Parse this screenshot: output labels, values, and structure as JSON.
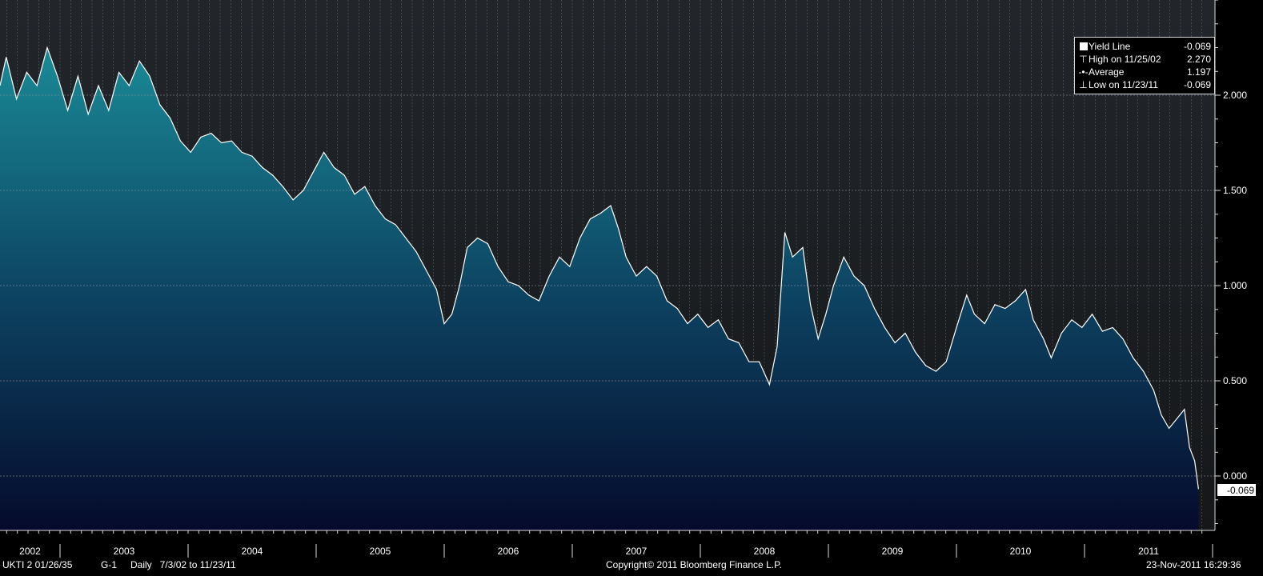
{
  "legend": {
    "series_label": "Yield Line",
    "series_value": "-0.069",
    "high_label": "High on 11/25/02",
    "high_value": "2.270",
    "avg_label": "Average",
    "avg_value": "1.197",
    "low_label": "Low on 11/23/11",
    "low_value": "-0.069"
  },
  "footer": {
    "security": "UKTI 2 01/26/35",
    "graph_id": "G-1",
    "range": "Daily   7/3/02 to 11/23/11",
    "copyright": "Copyright© 2011 Bloomberg Finance L.P.",
    "timestamp": "23-Nov-2011 16:29:36"
  },
  "colors": {
    "background": "#000000",
    "plot_top": "#22262b",
    "plot_bottom": "#151719",
    "area_top": "#1a8a96",
    "area_mid": "#0d4563",
    "area_bottom": "#050a2c",
    "line": "#ffffff",
    "grid": "#8a8f94"
  },
  "chart_data": {
    "type": "area",
    "x_axis_labels": [
      "2002",
      "2003",
      "2004",
      "2005",
      "2006",
      "2007",
      "2008",
      "2009",
      "2010",
      "2011"
    ],
    "y_ticks": [
      "2.000",
      "1.500",
      "1.000",
      "0.500",
      "0.000"
    ],
    "ylim": [
      -0.28,
      2.5
    ],
    "last_value_label": "-0.069",
    "grid": true,
    "legend_position": "top-right",
    "series": [
      {
        "name": "Yield Line",
        "points": [
          [
            2002.5,
            2.05
          ],
          [
            2002.58,
            2.2
          ],
          [
            2002.66,
            1.98
          ],
          [
            2002.74,
            2.12
          ],
          [
            2002.82,
            2.05
          ],
          [
            2002.9,
            2.25
          ],
          [
            2002.98,
            2.1
          ],
          [
            2003.06,
            1.92
          ],
          [
            2003.14,
            2.1
          ],
          [
            2003.22,
            1.9
          ],
          [
            2003.3,
            2.05
          ],
          [
            2003.38,
            1.92
          ],
          [
            2003.46,
            2.12
          ],
          [
            2003.54,
            2.05
          ],
          [
            2003.62,
            2.18
          ],
          [
            2003.7,
            2.1
          ],
          [
            2003.78,
            1.95
          ],
          [
            2003.86,
            1.88
          ],
          [
            2003.94,
            1.76
          ],
          [
            2004.02,
            1.7
          ],
          [
            2004.1,
            1.78
          ],
          [
            2004.18,
            1.8
          ],
          [
            2004.26,
            1.75
          ],
          [
            2004.34,
            1.76
          ],
          [
            2004.42,
            1.7
          ],
          [
            2004.5,
            1.68
          ],
          [
            2004.58,
            1.62
          ],
          [
            2004.66,
            1.58
          ],
          [
            2004.74,
            1.52
          ],
          [
            2004.82,
            1.45
          ],
          [
            2004.9,
            1.5
          ],
          [
            2004.98,
            1.6
          ],
          [
            2005.06,
            1.7
          ],
          [
            2005.14,
            1.62
          ],
          [
            2005.22,
            1.58
          ],
          [
            2005.3,
            1.48
          ],
          [
            2005.38,
            1.52
          ],
          [
            2005.46,
            1.42
          ],
          [
            2005.54,
            1.35
          ],
          [
            2005.62,
            1.32
          ],
          [
            2005.7,
            1.25
          ],
          [
            2005.78,
            1.18
          ],
          [
            2005.86,
            1.08
          ],
          [
            2005.94,
            0.98
          ],
          [
            2006.0,
            0.8
          ],
          [
            2006.06,
            0.85
          ],
          [
            2006.12,
            1.0
          ],
          [
            2006.18,
            1.2
          ],
          [
            2006.26,
            1.25
          ],
          [
            2006.34,
            1.22
          ],
          [
            2006.42,
            1.1
          ],
          [
            2006.5,
            1.02
          ],
          [
            2006.58,
            1.0
          ],
          [
            2006.66,
            0.95
          ],
          [
            2006.74,
            0.92
          ],
          [
            2006.82,
            1.05
          ],
          [
            2006.9,
            1.15
          ],
          [
            2006.98,
            1.1
          ],
          [
            2007.06,
            1.25
          ],
          [
            2007.14,
            1.35
          ],
          [
            2007.22,
            1.38
          ],
          [
            2007.3,
            1.42
          ],
          [
            2007.36,
            1.3
          ],
          [
            2007.42,
            1.15
          ],
          [
            2007.5,
            1.05
          ],
          [
            2007.58,
            1.1
          ],
          [
            2007.66,
            1.05
          ],
          [
            2007.74,
            0.92
          ],
          [
            2007.82,
            0.88
          ],
          [
            2007.9,
            0.8
          ],
          [
            2007.98,
            0.85
          ],
          [
            2008.06,
            0.78
          ],
          [
            2008.14,
            0.82
          ],
          [
            2008.22,
            0.72
          ],
          [
            2008.3,
            0.7
          ],
          [
            2008.38,
            0.6
          ],
          [
            2008.46,
            0.6
          ],
          [
            2008.54,
            0.48
          ],
          [
            2008.6,
            0.68
          ],
          [
            2008.66,
            1.28
          ],
          [
            2008.72,
            1.15
          ],
          [
            2008.8,
            1.2
          ],
          [
            2008.86,
            0.9
          ],
          [
            2008.92,
            0.72
          ],
          [
            2008.98,
            0.85
          ],
          [
            2009.04,
            1.0
          ],
          [
            2009.12,
            1.15
          ],
          [
            2009.2,
            1.05
          ],
          [
            2009.28,
            1.0
          ],
          [
            2009.36,
            0.88
          ],
          [
            2009.44,
            0.78
          ],
          [
            2009.52,
            0.7
          ],
          [
            2009.6,
            0.75
          ],
          [
            2009.68,
            0.65
          ],
          [
            2009.76,
            0.58
          ],
          [
            2009.84,
            0.55
          ],
          [
            2009.92,
            0.6
          ],
          [
            2010.0,
            0.78
          ],
          [
            2010.08,
            0.95
          ],
          [
            2010.14,
            0.85
          ],
          [
            2010.22,
            0.8
          ],
          [
            2010.3,
            0.9
          ],
          [
            2010.38,
            0.88
          ],
          [
            2010.46,
            0.92
          ],
          [
            2010.54,
            0.98
          ],
          [
            2010.6,
            0.82
          ],
          [
            2010.68,
            0.72
          ],
          [
            2010.74,
            0.62
          ],
          [
            2010.82,
            0.75
          ],
          [
            2010.9,
            0.82
          ],
          [
            2010.98,
            0.78
          ],
          [
            2011.06,
            0.85
          ],
          [
            2011.14,
            0.76
          ],
          [
            2011.22,
            0.78
          ],
          [
            2011.3,
            0.72
          ],
          [
            2011.38,
            0.62
          ],
          [
            2011.46,
            0.55
          ],
          [
            2011.54,
            0.45
          ],
          [
            2011.6,
            0.32
          ],
          [
            2011.66,
            0.25
          ],
          [
            2011.72,
            0.3
          ],
          [
            2011.78,
            0.35
          ],
          [
            2011.82,
            0.15
          ],
          [
            2011.86,
            0.08
          ],
          [
            2011.89,
            -0.069
          ]
        ]
      }
    ]
  }
}
